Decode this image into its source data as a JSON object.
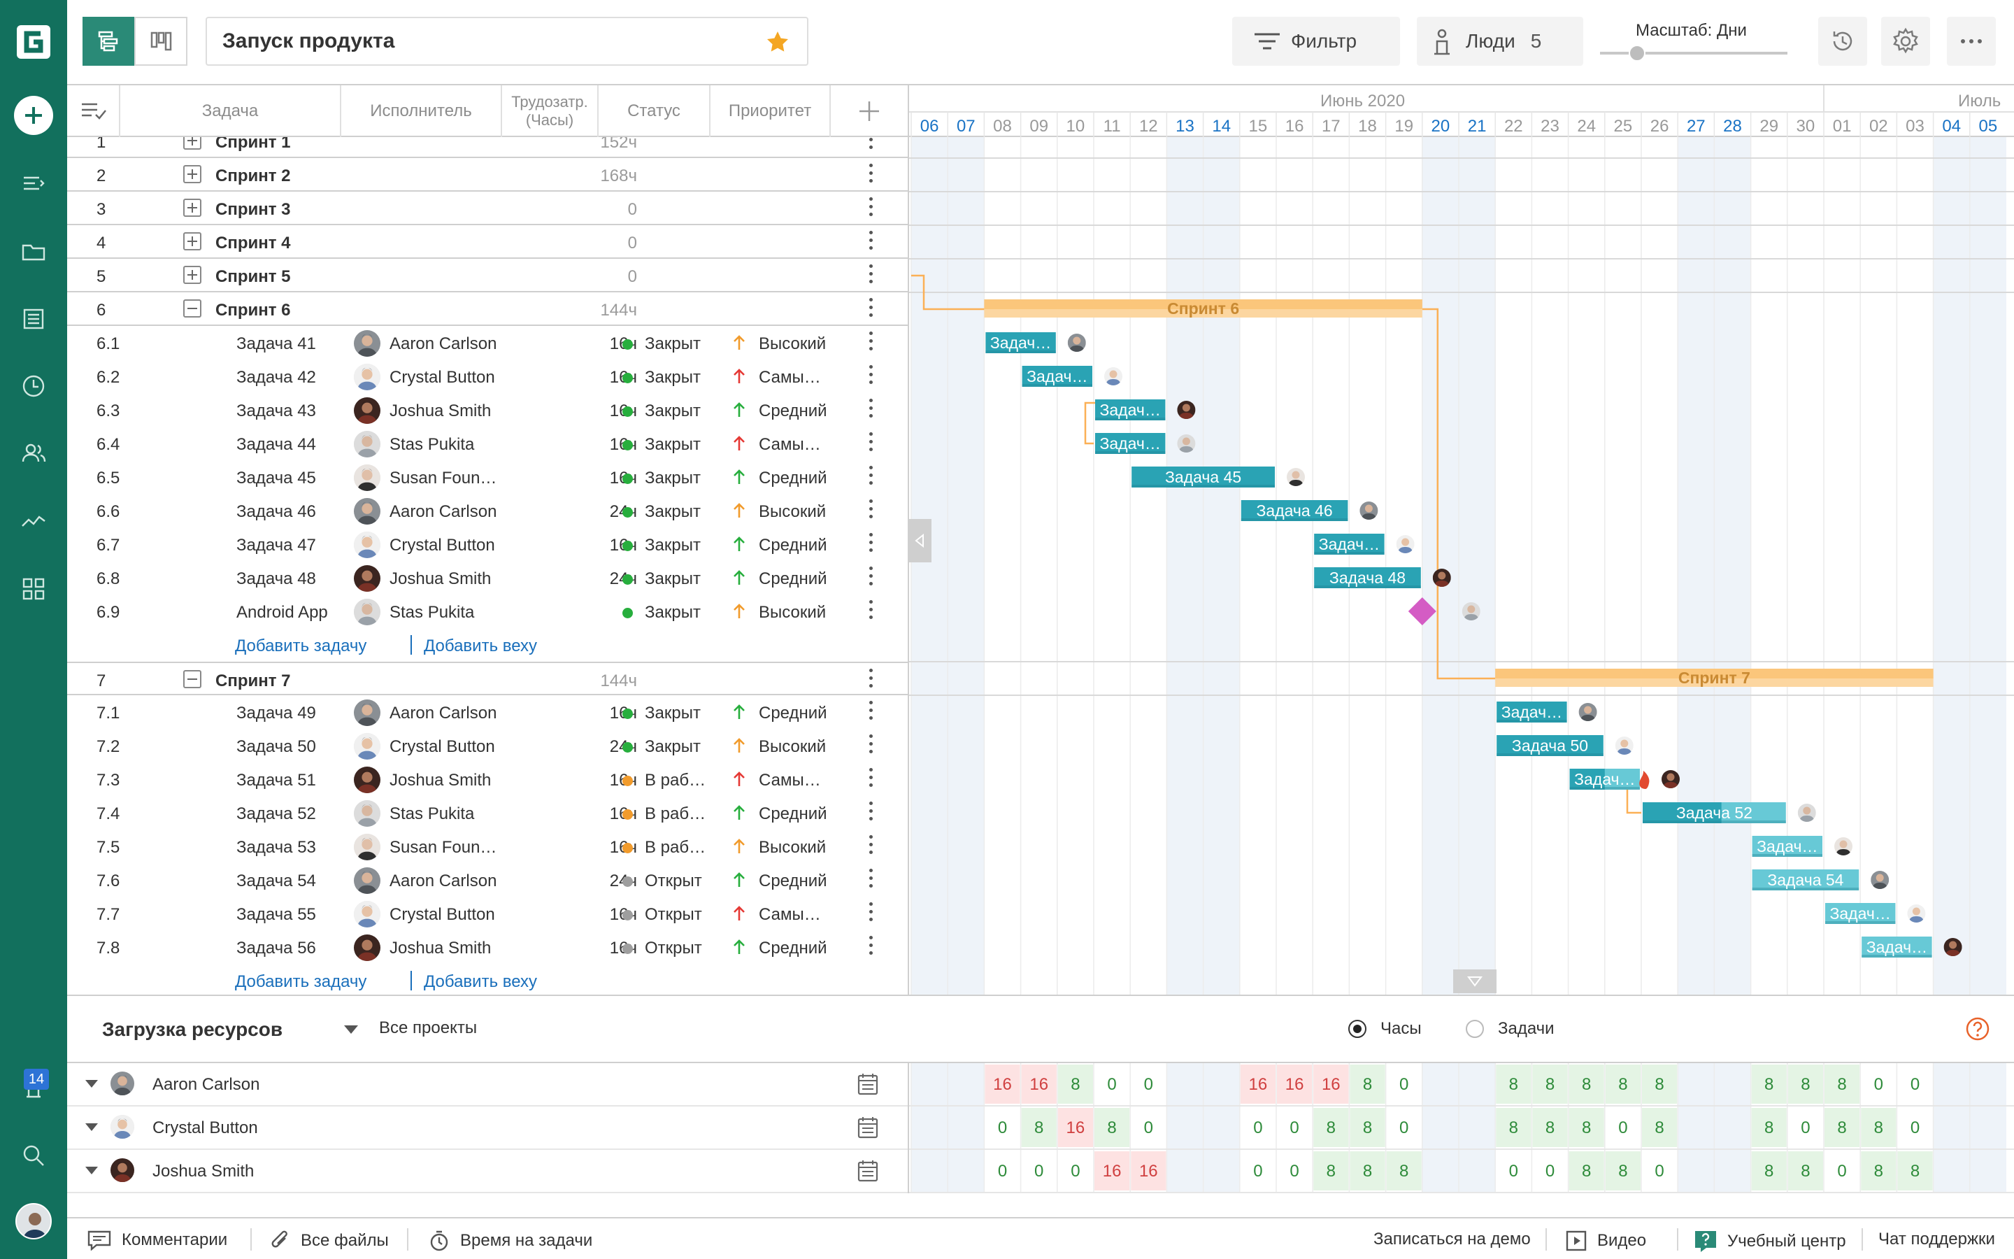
{
  "project": {
    "title": "Запуск продукта"
  },
  "toolbar": {
    "filter_label": "Фильтр",
    "people_label": "Люди",
    "people_count": "5",
    "scale_label": "Масштаб: Дни"
  },
  "columns": {
    "task": "Задача",
    "assignee": "Исполнитель",
    "effort": "Трудозатр. (Часы)",
    "status": "Статус",
    "priority": "Приоритет"
  },
  "timeline": {
    "month1": "Июнь 2020",
    "month2": "Июль",
    "days": [
      "06",
      "07",
      "08",
      "09",
      "10",
      "11",
      "12",
      "13",
      "14",
      "15",
      "16",
      "17",
      "18",
      "19",
      "20",
      "21",
      "22",
      "23",
      "24",
      "25",
      "26",
      "27",
      "28",
      "29",
      "30",
      "01",
      "02",
      "03",
      "04",
      "05"
    ],
    "weekend_idx": [
      0,
      1,
      7,
      8,
      14,
      15,
      21,
      22,
      28,
      29
    ]
  },
  "colors": {
    "brand": "#12705d",
    "accent": "#2a8a77",
    "bar": "#2aa3b4",
    "bar_light": "#67c9d6",
    "sprint_bar": "#fbc67b",
    "milestone": "#d45cc4",
    "link_blue": "#1a6fbb",
    "status_closed": "#27ae3d",
    "status_progress": "#f19b2c",
    "status_open": "#9e9e9e",
    "prio_high": "#f19b2c",
    "prio_highest": "#e53935",
    "prio_medium": "#27ae3d"
  },
  "rows": [
    {
      "kind": "sprint",
      "num": "1",
      "name": "Спринт 1",
      "hours": "152ч",
      "expand": "plus"
    },
    {
      "kind": "sprint",
      "num": "2",
      "name": "Спринт 2",
      "hours": "168ч",
      "expand": "plus"
    },
    {
      "kind": "sprint",
      "num": "3",
      "name": "Спринт 3",
      "hours": "0",
      "expand": "plus"
    },
    {
      "kind": "sprint",
      "num": "4",
      "name": "Спринт 4",
      "hours": "0",
      "expand": "plus"
    },
    {
      "kind": "sprint",
      "num": "5",
      "name": "Спринт 5",
      "hours": "0",
      "expand": "plus"
    },
    {
      "kind": "sprint",
      "num": "6",
      "name": "Спринт 6",
      "hours": "144ч",
      "expand": "minus"
    },
    {
      "kind": "task",
      "num": "6.1",
      "name": "Задача 41",
      "person": "Aaron Carlson",
      "av": 0,
      "hours": "16ч",
      "status": "Закрыт",
      "sc": "closed",
      "prio": "Высокий",
      "pc": "high"
    },
    {
      "kind": "task",
      "num": "6.2",
      "name": "Задача 42",
      "person": "Crystal Button",
      "av": 1,
      "hours": "16ч",
      "status": "Закрыт",
      "sc": "closed",
      "prio": "Самы…",
      "pc": "highest"
    },
    {
      "kind": "task",
      "num": "6.3",
      "name": "Задача 43",
      "person": "Joshua Smith",
      "av": 2,
      "hours": "16ч",
      "status": "Закрыт",
      "sc": "closed",
      "prio": "Средний",
      "pc": "medium"
    },
    {
      "kind": "task",
      "num": "6.4",
      "name": "Задача 44",
      "person": "Stas Pukita",
      "av": 3,
      "hours": "16ч",
      "status": "Закрыт",
      "sc": "closed",
      "prio": "Самы…",
      "pc": "highest"
    },
    {
      "kind": "task",
      "num": "6.5",
      "name": "Задача 45",
      "person": "Susan Foun…",
      "av": 4,
      "hours": "16ч",
      "status": "Закрыт",
      "sc": "closed",
      "prio": "Средний",
      "pc": "medium"
    },
    {
      "kind": "task",
      "num": "6.6",
      "name": "Задача 46",
      "person": "Aaron Carlson",
      "av": 0,
      "hours": "24ч",
      "status": "Закрыт",
      "sc": "closed",
      "prio": "Высокий",
      "pc": "high"
    },
    {
      "kind": "task",
      "num": "6.7",
      "name": "Задача 47",
      "person": "Crystal Button",
      "av": 1,
      "hours": "16ч",
      "status": "Закрыт",
      "sc": "closed",
      "prio": "Средний",
      "pc": "medium"
    },
    {
      "kind": "task",
      "num": "6.8",
      "name": "Задача 48",
      "person": "Joshua Smith",
      "av": 2,
      "hours": "24ч",
      "status": "Закрыт",
      "sc": "closed",
      "prio": "Средний",
      "pc": "medium"
    },
    {
      "kind": "task",
      "num": "6.9",
      "name": "Android App",
      "person": "Stas Pukita",
      "av": 3,
      "hours": "",
      "status": "Закрыт",
      "sc": "closed",
      "prio": "Высокий",
      "pc": "high"
    },
    {
      "kind": "add",
      "add_task": "Добавить задачу",
      "add_milestone": "Добавить веху"
    },
    {
      "kind": "sprint",
      "num": "7",
      "name": "Спринт 7",
      "hours": "144ч",
      "expand": "minus"
    },
    {
      "kind": "task",
      "num": "7.1",
      "name": "Задача 49",
      "person": "Aaron Carlson",
      "av": 0,
      "hours": "16ч",
      "status": "Закрыт",
      "sc": "closed",
      "prio": "Средний",
      "pc": "medium"
    },
    {
      "kind": "task",
      "num": "7.2",
      "name": "Задача 50",
      "person": "Crystal Button",
      "av": 1,
      "hours": "24ч",
      "status": "Закрыт",
      "sc": "closed",
      "prio": "Высокий",
      "pc": "high"
    },
    {
      "kind": "task",
      "num": "7.3",
      "name": "Задача 51",
      "person": "Joshua Smith",
      "av": 2,
      "hours": "16ч",
      "status": "В раб…",
      "sc": "progress",
      "prio": "Самы…",
      "pc": "highest"
    },
    {
      "kind": "task",
      "num": "7.4",
      "name": "Задача 52",
      "person": "Stas Pukita",
      "av": 3,
      "hours": "16ч",
      "status": "В раб…",
      "sc": "progress",
      "prio": "Средний",
      "pc": "medium"
    },
    {
      "kind": "task",
      "num": "7.5",
      "name": "Задача 53",
      "person": "Susan Foun…",
      "av": 4,
      "hours": "16ч",
      "status": "В раб…",
      "sc": "progress",
      "prio": "Высокий",
      "pc": "high"
    },
    {
      "kind": "task",
      "num": "7.6",
      "name": "Задача 54",
      "person": "Aaron Carlson",
      "av": 0,
      "hours": "24ч",
      "status": "Открыт",
      "sc": "open",
      "prio": "Средний",
      "pc": "medium"
    },
    {
      "kind": "task",
      "num": "7.7",
      "name": "Задача 55",
      "person": "Crystal Button",
      "av": 1,
      "hours": "16ч",
      "status": "Открыт",
      "sc": "open",
      "prio": "Самы…",
      "pc": "highest"
    },
    {
      "kind": "task",
      "num": "7.8",
      "name": "Задача 56",
      "person": "Joshua Smith",
      "av": 2,
      "hours": "16ч",
      "status": "Открыт",
      "sc": "open",
      "prio": "Средний",
      "pc": "medium"
    },
    {
      "kind": "add",
      "add_task": "Добавить задачу",
      "add_milestone": "Добавить веху"
    }
  ],
  "gantt": {
    "sprints": [
      {
        "row": 5,
        "label": "Спринт 6",
        "start": 2,
        "end": 14
      },
      {
        "row": 16,
        "label": "Спринт 7",
        "start": 16,
        "end": 28
      }
    ],
    "tasks": [
      {
        "row": 6,
        "label": "Задач…",
        "start": 2,
        "end": 4,
        "av": 0
      },
      {
        "row": 7,
        "label": "Задач…",
        "start": 3,
        "end": 5,
        "av": 1
      },
      {
        "row": 8,
        "label": "Задач…",
        "start": 5,
        "end": 7,
        "av": 2
      },
      {
        "row": 9,
        "label": "Задач…",
        "start": 5,
        "end": 7,
        "av": 3
      },
      {
        "row": 10,
        "label": "Задача 45",
        "start": 6,
        "end": 10,
        "av": 4
      },
      {
        "row": 11,
        "label": "Задача 46",
        "start": 9,
        "end": 12,
        "av": 0
      },
      {
        "row": 12,
        "label": "Задач…",
        "start": 11,
        "end": 13,
        "av": 1
      },
      {
        "row": 13,
        "label": "Задача 48",
        "start": 11,
        "end": 14,
        "av": 2
      },
      {
        "row": 17,
        "label": "Задач…",
        "start": 16,
        "end": 18,
        "av": 0
      },
      {
        "row": 18,
        "label": "Задача 50",
        "start": 16,
        "end": 19,
        "av": 1
      },
      {
        "row": 19,
        "label": "Задач…",
        "start": 18,
        "end": 20,
        "av": 2,
        "progress": 0.5,
        "fire": true
      },
      {
        "row": 20,
        "label": "Задача 52",
        "start": 20,
        "end": 24,
        "av": 3,
        "progress": 0.55
      },
      {
        "row": 21,
        "label": "Задач…",
        "start": 23,
        "end": 25,
        "av": 4,
        "progress": 0
      },
      {
        "row": 22,
        "label": "Задача 54",
        "start": 23,
        "end": 26,
        "av": 0,
        "progress": 0
      },
      {
        "row": 23,
        "label": "Задач…",
        "start": 25,
        "end": 27,
        "av": 1,
        "progress": 0
      },
      {
        "row": 24,
        "label": "Задач…",
        "start": 26,
        "end": 28,
        "av": 2,
        "progress": 0
      }
    ],
    "milestone": {
      "row": 14,
      "day": 14,
      "av": 3
    }
  },
  "resources": {
    "title": "Загрузка ресурсов",
    "projects": "Все проекты",
    "radio_hours": "Часы",
    "radio_tasks": "Задачи",
    "people": [
      {
        "name": "Aaron Carlson",
        "av": 0,
        "cells": {
          "2": "16",
          "3": "16",
          "4": "8",
          "5": "0",
          "6": "0",
          "9": "16",
          "10": "16",
          "11": "16",
          "12": "8",
          "13": "0",
          "16": "8",
          "17": "8",
          "18": "8",
          "19": "8",
          "20": "8",
          "23": "8",
          "24": "8",
          "25": "8",
          "26": "0",
          "27": "0"
        }
      },
      {
        "name": "Crystal Button",
        "av": 1,
        "cells": {
          "2": "0",
          "3": "8",
          "4": "16",
          "5": "8",
          "6": "0",
          "9": "0",
          "10": "0",
          "11": "8",
          "12": "8",
          "13": "0",
          "16": "8",
          "17": "8",
          "18": "8",
          "19": "0",
          "20": "8",
          "23": "8",
          "24": "0",
          "25": "8",
          "26": "8",
          "27": "0"
        }
      },
      {
        "name": "Joshua Smith",
        "av": 2,
        "cells": {
          "2": "0",
          "3": "0",
          "4": "0",
          "5": "16",
          "6": "16",
          "9": "0",
          "10": "0",
          "11": "8",
          "12": "8",
          "13": "8",
          "16": "0",
          "17": "0",
          "18": "8",
          "19": "8",
          "20": "0",
          "23": "8",
          "24": "8",
          "25": "0",
          "26": "8",
          "27": "8"
        }
      }
    ]
  },
  "footer": {
    "comments": "Комментарии",
    "files": "Все файлы",
    "time": "Время на задачи",
    "demo": "Записаться на демо",
    "video": "Видео",
    "learn": "Учебный центр",
    "support": "Чат поддержки"
  },
  "sidebar": {
    "notifications": "14"
  }
}
